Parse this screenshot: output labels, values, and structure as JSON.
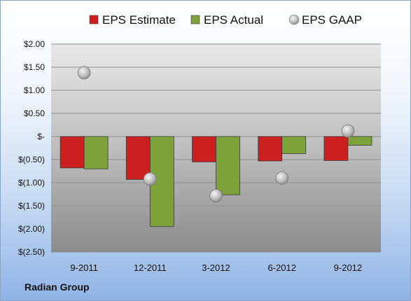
{
  "chart_data": {
    "type": "bar",
    "categories": [
      "9-2011",
      "12-2011",
      "3-2012",
      "6-2012",
      "9-2012"
    ],
    "series": [
      {
        "name": "EPS Estimate",
        "values": [
          -0.68,
          -0.93,
          -0.55,
          -0.53,
          -0.52
        ],
        "color": "#cc1f1f",
        "kind": "bar"
      },
      {
        "name": "EPS Actual",
        "values": [
          -0.7,
          -1.95,
          -1.26,
          -0.37,
          -0.19
        ],
        "color": "#7ea23a",
        "kind": "bar"
      },
      {
        "name": "EPS GAAP",
        "values": [
          1.38,
          -0.92,
          -1.28,
          -0.9,
          0.12
        ],
        "color": "#a8a8a8",
        "kind": "scatter"
      }
    ],
    "ylim": [
      -2.5,
      2.0
    ],
    "yticks": [
      2.0,
      1.5,
      1.0,
      0.5,
      0.0,
      -0.5,
      -1.0,
      -1.5,
      -2.0,
      -2.5
    ],
    "ytick_labels": [
      "$2.00",
      "$1.50",
      "$1.00",
      "$0.50",
      "$-",
      "$(0.50)",
      "$(1.00)",
      "$(1.50)",
      "$(2.00)",
      "$(2.50)"
    ],
    "grid": true,
    "legend_position": "top"
  },
  "footer": {
    "company": "Radian Group"
  }
}
